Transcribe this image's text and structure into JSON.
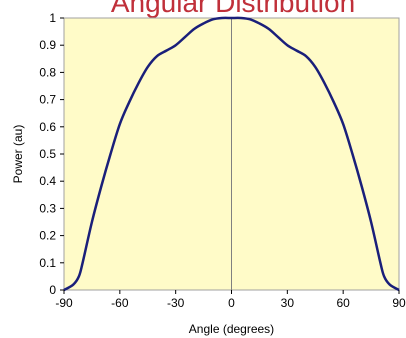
{
  "chart_data": {
    "type": "line",
    "title": "Angular Distribution",
    "xlabel": "Angle (degrees)",
    "ylabel": "Power (au)",
    "xlim": [
      -90,
      90
    ],
    "ylim": [
      0,
      1
    ],
    "x_ticks": [
      -90,
      -60,
      -30,
      0,
      30,
      60,
      90
    ],
    "y_ticks": [
      0,
      0.1,
      0.2,
      0.3,
      0.4,
      0.5,
      0.6,
      0.7,
      0.8,
      0.9,
      1
    ],
    "x_tick_labels": [
      "-90",
      "-60",
      "-30",
      "0",
      "30",
      "60",
      "90"
    ],
    "y_tick_labels": [
      "0",
      "0.1",
      "0.2",
      "0.3",
      "0.4",
      "0.5",
      "0.6",
      "0.7",
      "0.8",
      "0.9",
      "1"
    ],
    "grid": false,
    "colors": {
      "plot_background": "#fffbc8",
      "line": "#1a1f7a",
      "title": "#c0303a",
      "zero_line": "#808080"
    },
    "series": [
      {
        "x": [
          -90,
          -85,
          -82,
          -80,
          -75,
          -70,
          -65,
          -60,
          -55,
          -50,
          -45,
          -40,
          -35,
          -30,
          -25,
          -20,
          -15,
          -10,
          -5,
          0,
          5,
          10,
          15,
          20,
          25,
          30,
          35,
          40,
          45,
          50,
          55,
          60,
          65,
          70,
          75,
          80,
          82,
          85,
          90
        ],
        "y": [
          0.0,
          0.02,
          0.05,
          0.1,
          0.25,
          0.38,
          0.5,
          0.61,
          0.69,
          0.76,
          0.82,
          0.86,
          0.88,
          0.9,
          0.93,
          0.96,
          0.98,
          0.995,
          1.0,
          1.0,
          1.0,
          0.995,
          0.98,
          0.96,
          0.93,
          0.9,
          0.88,
          0.86,
          0.82,
          0.76,
          0.69,
          0.61,
          0.5,
          0.38,
          0.25,
          0.1,
          0.05,
          0.02,
          0.0
        ]
      }
    ]
  }
}
